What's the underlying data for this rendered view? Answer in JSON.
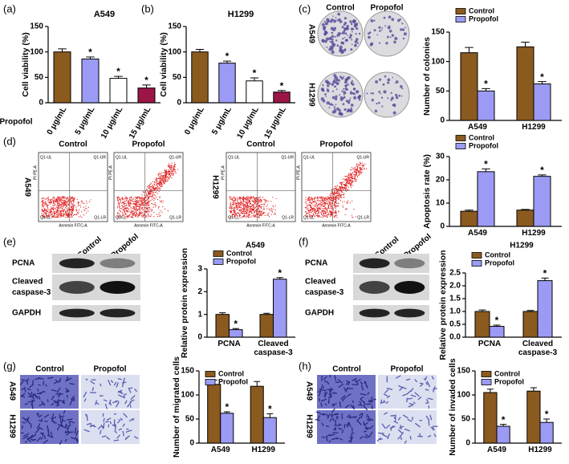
{
  "figure": {
    "panel_labels": [
      "(a)",
      "(b)",
      "(c)",
      "(d)",
      "(e)",
      "(f)",
      "(g)",
      "(h)"
    ],
    "groups": [
      "Control",
      "Propofol"
    ],
    "cell_lines": [
      "A549",
      "H1299"
    ],
    "blot_rows": [
      "PCNA",
      "Cleaved caspase-3",
      "GAPDH"
    ],
    "flow_quadrants": [
      "Q1-UL",
      "Q1-UR",
      "Q1-LL",
      "Q1-LR"
    ],
    "flow_x_label": "Annexin FITC-A",
    "flow_y_label": "PI PE-A"
  },
  "chart_data": [
    {
      "type": "bar",
      "title": "A549",
      "ylabel": "Cell viability (%)",
      "xlabel": "Propofol",
      "categories": [
        "0 μg/mL",
        "5 μg/mL",
        "10 μg/mL",
        "15 μg/mL"
      ],
      "values": [
        100,
        86,
        48,
        29
      ],
      "errors": [
        6,
        4,
        4,
        6
      ],
      "stars": [
        null,
        "*",
        "*",
        "*"
      ],
      "colors": [
        "#8b5a1e",
        "#9b9bf5",
        "#ffffff",
        "#9b1547"
      ],
      "ylim": [
        0,
        150
      ],
      "yticks": [
        0,
        50,
        100,
        150
      ]
    },
    {
      "type": "bar",
      "title": "H1299",
      "ylabel": "Cell viability (%)",
      "categories": [
        "0 μg/mL",
        "5 μg/mL",
        "10 μg/mL",
        "15 μg/mL"
      ],
      "values": [
        100,
        78,
        43,
        21
      ],
      "errors": [
        5,
        4,
        6,
        3
      ],
      "stars": [
        null,
        "*",
        "*",
        "*"
      ],
      "colors": [
        "#8b5a1e",
        "#9b9bf5",
        "#ffffff",
        "#9b1547"
      ],
      "ylim": [
        0,
        150
      ],
      "yticks": [
        0,
        50,
        100,
        150
      ]
    },
    {
      "type": "grouped_bar",
      "ylabel": "Number of colonies",
      "categories": [
        "A549",
        "H1299"
      ],
      "series": [
        {
          "name": "Control",
          "color": "#8b5a1e",
          "values": [
            115,
            125
          ],
          "errors": [
            9,
            8
          ],
          "stars": [
            null,
            null
          ]
        },
        {
          "name": "Propofol",
          "color": "#9b9bf5",
          "values": [
            50,
            62
          ],
          "errors": [
            4,
            4
          ],
          "stars": [
            "*",
            "*"
          ]
        }
      ],
      "ylim": [
        0,
        150
      ],
      "yticks": [
        0,
        50,
        100,
        150
      ],
      "legend": "upper-left"
    },
    {
      "type": "grouped_bar",
      "ylabel": "Apoptosis rate (%)",
      "categories": [
        "A549",
        "H1299"
      ],
      "series": [
        {
          "name": "Control",
          "color": "#8b5a1e",
          "values": [
            6.5,
            7
          ],
          "errors": [
            0.5,
            0.3
          ],
          "stars": [
            null,
            null
          ]
        },
        {
          "name": "Propofol",
          "color": "#9b9bf5",
          "values": [
            23.5,
            21.5
          ],
          "errors": [
            1.2,
            0.6
          ],
          "stars": [
            "*",
            "*"
          ]
        }
      ],
      "ylim": [
        0,
        30
      ],
      "yticks": [
        0,
        10,
        20,
        30
      ],
      "legend": "upper-left"
    },
    {
      "type": "grouped_bar",
      "title": "A549",
      "ylabel": "Relative protein expression",
      "categories": [
        "PCNA",
        "Cleaved caspase-3"
      ],
      "series": [
        {
          "name": "Control",
          "color": "#8b5a1e",
          "values": [
            1.0,
            1.0
          ],
          "errors": [
            0.07,
            0.05
          ],
          "stars": [
            null,
            null
          ]
        },
        {
          "name": "Propofol",
          "color": "#9b9bf5",
          "values": [
            0.33,
            2.55
          ],
          "errors": [
            0.05,
            0.07
          ],
          "stars": [
            "*",
            "*"
          ]
        }
      ],
      "ylim": [
        0,
        3
      ],
      "yticks": [
        0,
        1,
        2,
        3
      ],
      "legend": "upper-left"
    },
    {
      "type": "grouped_bar",
      "title": "H1299",
      "ylabel": "Relative protein expression",
      "categories": [
        "PCNA",
        "Cleaved caspase-3"
      ],
      "series": [
        {
          "name": "Control",
          "color": "#8b5a1e",
          "values": [
            1.0,
            1.0
          ],
          "errors": [
            0.06,
            0.04
          ],
          "stars": [
            null,
            null
          ]
        },
        {
          "name": "Propofol",
          "color": "#9b9bf5",
          "values": [
            0.42,
            2.2
          ],
          "errors": [
            0.05,
            0.1
          ],
          "stars": [
            "*",
            "*"
          ]
        }
      ],
      "ylim": [
        0,
        2.5
      ],
      "yticks": [
        {
          "value": 0,
          "label": "0.0"
        },
        0.5,
        {
          "value": 1,
          "label": "1.0"
        },
        1.5,
        {
          "value": 2,
          "label": "2.0"
        },
        2.5
      ],
      "legend": "upper-left"
    },
    {
      "type": "grouped_bar",
      "ylabel": "Number of migrated cells",
      "categories": [
        "A549",
        "H1299"
      ],
      "series": [
        {
          "name": "Control",
          "color": "#8b5a1e",
          "values": [
            122,
            118
          ],
          "errors": [
            9,
            10
          ],
          "stars": [
            null,
            null
          ]
        },
        {
          "name": "Propofol",
          "color": "#9b9bf5",
          "values": [
            62,
            53
          ],
          "errors": [
            3,
            8
          ],
          "stars": [
            "*",
            "*"
          ]
        }
      ],
      "ylim": [
        0,
        150
      ],
      "yticks": [
        0,
        50,
        100,
        150
      ],
      "legend": "upper-left"
    },
    {
      "type": "grouped_bar",
      "ylabel": "Number of invaded cells",
      "categories": [
        "A549",
        "H1299"
      ],
      "series": [
        {
          "name": "Control",
          "color": "#8b5a1e",
          "values": [
            105,
            108
          ],
          "errors": [
            7,
            7
          ],
          "stars": [
            null,
            null
          ]
        },
        {
          "name": "Propofol",
          "color": "#9b9bf5",
          "values": [
            35,
            43
          ],
          "errors": [
            4,
            7
          ],
          "stars": [
            "*",
            "*"
          ]
        }
      ],
      "ylim": [
        0,
        150
      ],
      "yticks": [
        0,
        50,
        100,
        150
      ],
      "legend": "upper-left"
    }
  ]
}
